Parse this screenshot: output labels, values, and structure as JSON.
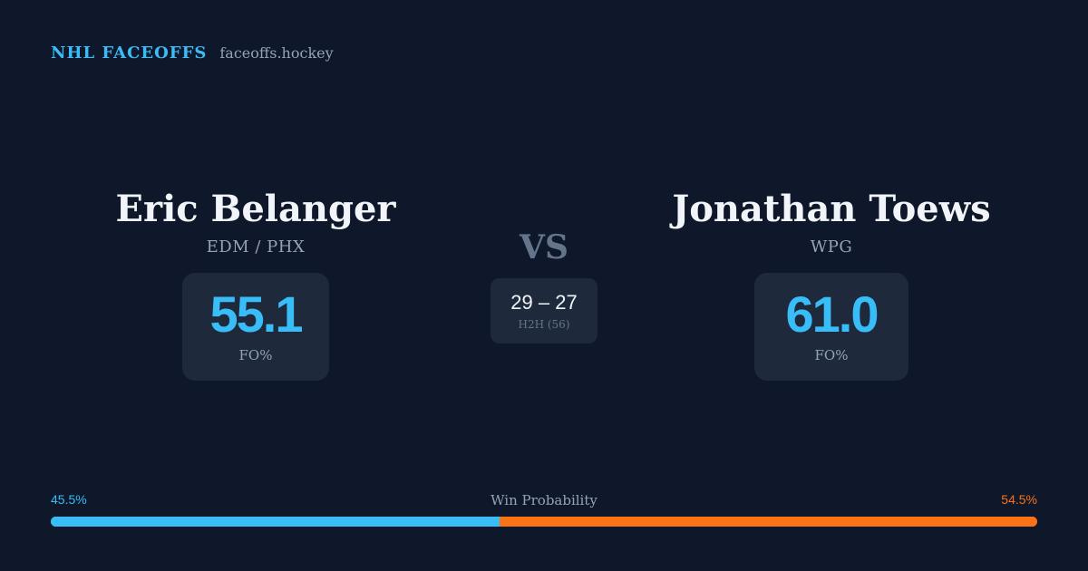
{
  "brand": {
    "name": "NHL FACEOFFS",
    "url": "faceoffs.hockey"
  },
  "players": [
    {
      "name": "Eric Belanger",
      "team": "EDM / PHX",
      "stat_value": "55.1",
      "stat_label": "FO%"
    },
    {
      "name": "Jonathan Toews",
      "team": "WPG",
      "stat_value": "61.0",
      "stat_label": "FO%"
    }
  ],
  "vs_label": "VS",
  "head_to_head": {
    "score": "29 – 27",
    "label": "H2H (56)"
  },
  "win_probability": {
    "title": "Win Probability",
    "left_label": "45.5%",
    "right_label": "54.5%",
    "left_fraction": 0.455,
    "right_fraction": 0.545
  },
  "colors": {
    "background": "#0f172a",
    "accent_left": "#38bdf8",
    "accent_right": "#f97316",
    "card": "#1e293b"
  }
}
